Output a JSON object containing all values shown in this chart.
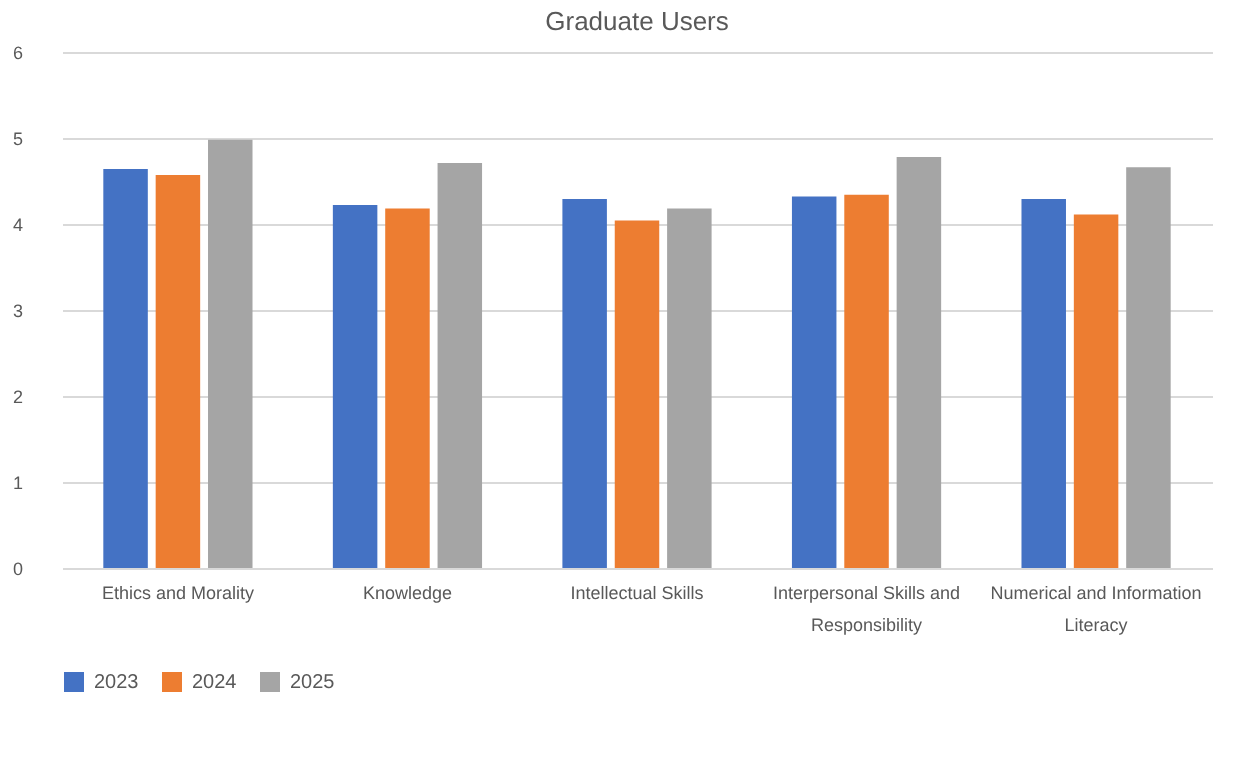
{
  "chart_data": {
    "type": "bar",
    "title": "Graduate Users",
    "categories": [
      "Ethics and Morality",
      "Knowledge",
      "Intellectual Skills",
      "Interpersonal Skills and Responsibility",
      "Numerical and Information Literacy"
    ],
    "series": [
      {
        "name": "2023",
        "color": "#4472c4",
        "values": [
          4.64,
          4.22,
          4.29,
          4.32,
          4.29
        ]
      },
      {
        "name": "2024",
        "color": "#ed7d31",
        "values": [
          4.57,
          4.18,
          4.04,
          4.34,
          4.11
        ]
      },
      {
        "name": "2025",
        "color": "#a5a5a5",
        "values": [
          4.98,
          4.71,
          4.18,
          4.78,
          4.66
        ]
      }
    ],
    "ylim": [
      0,
      6
    ],
    "yticks": [
      0,
      1,
      2,
      3,
      4,
      5,
      6
    ],
    "grid": "y",
    "legend": "bottom"
  }
}
